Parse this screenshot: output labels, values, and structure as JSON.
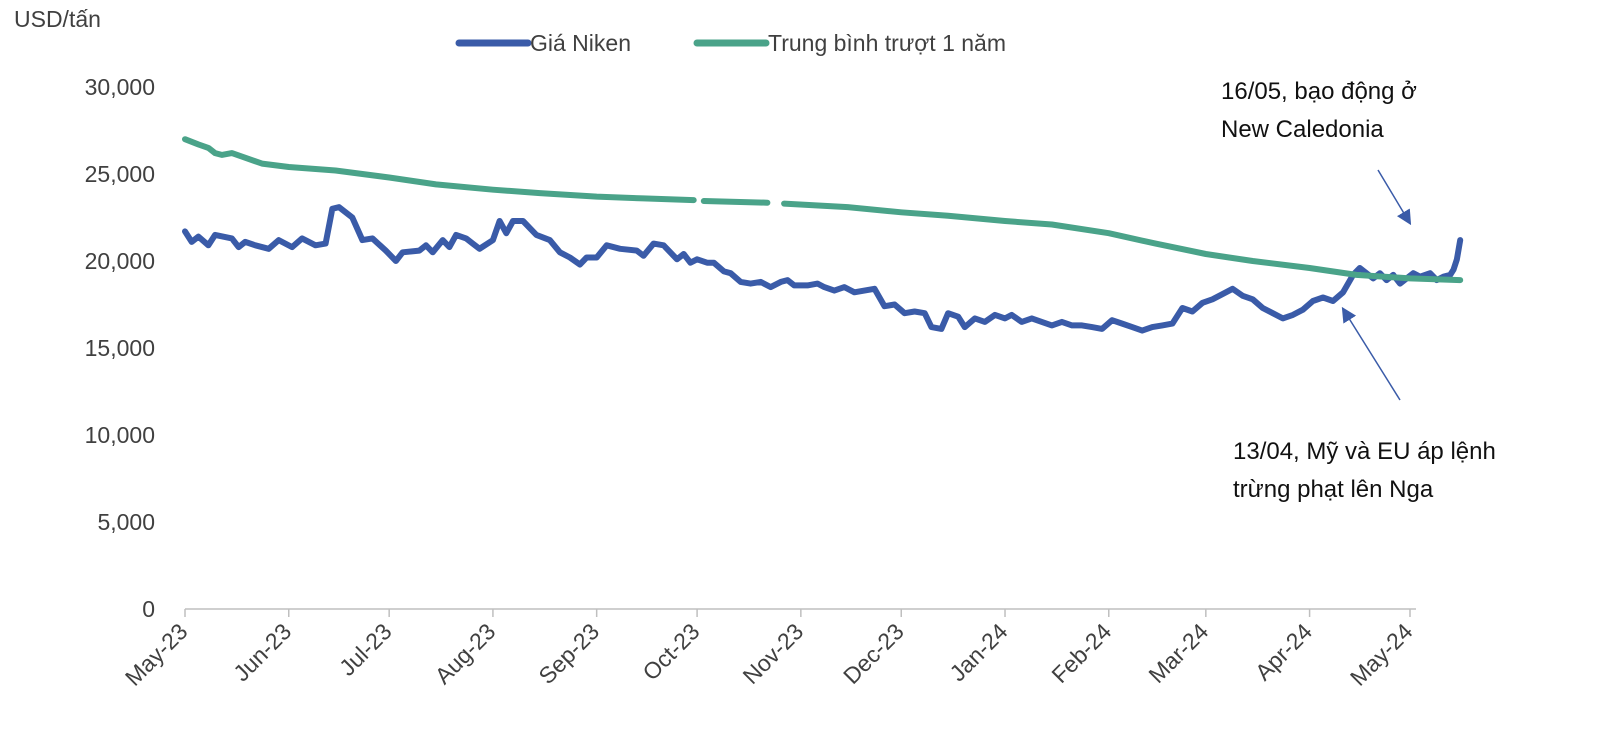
{
  "chart_data": {
    "type": "line",
    "ylabel": "USD/tấn",
    "ylim": [
      0,
      30000
    ],
    "yticks": [
      "0",
      "5,000",
      "10,000",
      "15,000",
      "20,000",
      "25,000",
      "30,000"
    ],
    "ytick_values": [
      0,
      5000,
      10000,
      15000,
      20000,
      25000,
      30000
    ],
    "x_ticks": [
      "May-23",
      "Jun-23",
      "Jul-23",
      "Aug-23",
      "Sep-23",
      "Oct-23",
      "Nov-23",
      "Dec-23",
      "Jan-24",
      "Feb-24",
      "Mar-24",
      "Apr-24",
      "May-24"
    ],
    "x_tick_dates": [
      "2023-05-01",
      "2023-06-01",
      "2023-07-01",
      "2023-08-01",
      "2023-09-01",
      "2023-10-01",
      "2023-11-01",
      "2023-12-01",
      "2024-01-01",
      "2024-02-01",
      "2024-03-01",
      "2024-04-01",
      "2024-05-01"
    ],
    "grid": false,
    "legend_position": "top-center",
    "series": [
      {
        "name": "Giá Niken",
        "color": "#3a5ba8",
        "points": [
          [
            "2023-05-01",
            21700
          ],
          [
            "2023-05-03",
            21100
          ],
          [
            "2023-05-05",
            21400
          ],
          [
            "2023-05-08",
            20900
          ],
          [
            "2023-05-10",
            21500
          ],
          [
            "2023-05-15",
            21300
          ],
          [
            "2023-05-17",
            20800
          ],
          [
            "2023-05-19",
            21100
          ],
          [
            "2023-05-22",
            20900
          ],
          [
            "2023-05-26",
            20700
          ],
          [
            "2023-05-29",
            21200
          ],
          [
            "2023-06-02",
            20800
          ],
          [
            "2023-06-05",
            21300
          ],
          [
            "2023-06-09",
            20900
          ],
          [
            "2023-06-12",
            21000
          ],
          [
            "2023-06-14",
            23000
          ],
          [
            "2023-06-16",
            23100
          ],
          [
            "2023-06-20",
            22500
          ],
          [
            "2023-06-23",
            21200
          ],
          [
            "2023-06-26",
            21300
          ],
          [
            "2023-06-30",
            20600
          ],
          [
            "2023-07-03",
            20000
          ],
          [
            "2023-07-05",
            20500
          ],
          [
            "2023-07-10",
            20600
          ],
          [
            "2023-07-12",
            20900
          ],
          [
            "2023-07-14",
            20500
          ],
          [
            "2023-07-17",
            21200
          ],
          [
            "2023-07-19",
            20800
          ],
          [
            "2023-07-21",
            21500
          ],
          [
            "2023-07-24",
            21300
          ],
          [
            "2023-07-26",
            21000
          ],
          [
            "2023-07-28",
            20700
          ],
          [
            "2023-08-01",
            21200
          ],
          [
            "2023-08-03",
            22300
          ],
          [
            "2023-08-05",
            21600
          ],
          [
            "2023-08-07",
            22300
          ],
          [
            "2023-08-10",
            22300
          ],
          [
            "2023-08-14",
            21500
          ],
          [
            "2023-08-18",
            21200
          ],
          [
            "2023-08-21",
            20500
          ],
          [
            "2023-08-24",
            20200
          ],
          [
            "2023-08-27",
            19800
          ],
          [
            "2023-08-29",
            20200
          ],
          [
            "2023-09-01",
            20200
          ],
          [
            "2023-09-04",
            20900
          ],
          [
            "2023-09-08",
            20700
          ],
          [
            "2023-09-13",
            20600
          ],
          [
            "2023-09-15",
            20300
          ],
          [
            "2023-09-18",
            21000
          ],
          [
            "2023-09-21",
            20900
          ],
          [
            "2023-09-25",
            20100
          ],
          [
            "2023-09-27",
            20400
          ],
          [
            "2023-09-29",
            19900
          ],
          [
            "2023-10-01",
            20100
          ],
          [
            "2023-10-04",
            19900
          ],
          [
            "2023-10-06",
            19900
          ],
          [
            "2023-10-09",
            19400
          ],
          [
            "2023-10-11",
            19300
          ],
          [
            "2023-10-14",
            18800
          ],
          [
            "2023-10-17",
            18700
          ],
          [
            "2023-10-20",
            18800
          ],
          [
            "2023-10-23",
            18500
          ],
          [
            "2023-10-26",
            18800
          ],
          [
            "2023-10-28",
            18900
          ],
          [
            "2023-10-30",
            18600
          ],
          [
            "2023-11-03",
            18600
          ],
          [
            "2023-11-06",
            18700
          ],
          [
            "2023-11-08",
            18500
          ],
          [
            "2023-11-11",
            18300
          ],
          [
            "2023-11-14",
            18500
          ],
          [
            "2023-11-17",
            18200
          ],
          [
            "2023-11-20",
            18300
          ],
          [
            "2023-11-23",
            18400
          ],
          [
            "2023-11-26",
            17400
          ],
          [
            "2023-11-29",
            17500
          ],
          [
            "2023-12-02",
            17000
          ],
          [
            "2023-12-05",
            17100
          ],
          [
            "2023-12-08",
            17000
          ],
          [
            "2023-12-10",
            16200
          ],
          [
            "2023-12-13",
            16100
          ],
          [
            "2023-12-15",
            17000
          ],
          [
            "2023-12-18",
            16800
          ],
          [
            "2023-12-20",
            16200
          ],
          [
            "2023-12-23",
            16700
          ],
          [
            "2023-12-26",
            16500
          ],
          [
            "2023-12-29",
            16900
          ],
          [
            "2024-01-01",
            16700
          ],
          [
            "2024-01-03",
            16900
          ],
          [
            "2024-01-06",
            16500
          ],
          [
            "2024-01-09",
            16700
          ],
          [
            "2024-01-12",
            16500
          ],
          [
            "2024-01-15",
            16300
          ],
          [
            "2024-01-18",
            16500
          ],
          [
            "2024-01-21",
            16300
          ],
          [
            "2024-01-24",
            16300
          ],
          [
            "2024-01-27",
            16200
          ],
          [
            "2024-01-30",
            16100
          ],
          [
            "2024-02-02",
            16600
          ],
          [
            "2024-02-05",
            16400
          ],
          [
            "2024-02-08",
            16200
          ],
          [
            "2024-02-11",
            16000
          ],
          [
            "2024-02-14",
            16200
          ],
          [
            "2024-02-17",
            16300
          ],
          [
            "2024-02-20",
            16400
          ],
          [
            "2024-02-23",
            17300
          ],
          [
            "2024-02-26",
            17100
          ],
          [
            "2024-02-29",
            17600
          ],
          [
            "2024-03-03",
            17800
          ],
          [
            "2024-03-06",
            18100
          ],
          [
            "2024-03-09",
            18400
          ],
          [
            "2024-03-12",
            18000
          ],
          [
            "2024-03-15",
            17800
          ],
          [
            "2024-03-18",
            17300
          ],
          [
            "2024-03-21",
            17000
          ],
          [
            "2024-03-24",
            16700
          ],
          [
            "2024-03-27",
            16900
          ],
          [
            "2024-03-30",
            17200
          ],
          [
            "2024-04-02",
            17700
          ],
          [
            "2024-04-05",
            17900
          ],
          [
            "2024-04-08",
            17700
          ],
          [
            "2024-04-11",
            18200
          ],
          [
            "2024-04-14",
            19200
          ],
          [
            "2024-04-16",
            19600
          ],
          [
            "2024-04-18",
            19300
          ],
          [
            "2024-04-20",
            19000
          ],
          [
            "2024-04-22",
            19300
          ],
          [
            "2024-04-24",
            18900
          ],
          [
            "2024-04-26",
            19200
          ],
          [
            "2024-04-28",
            18700
          ],
          [
            "2024-04-30",
            19000
          ],
          [
            "2024-05-02",
            19300
          ],
          [
            "2024-05-04",
            19100
          ],
          [
            "2024-05-07",
            19300
          ],
          [
            "2024-05-09",
            18900
          ],
          [
            "2024-05-11",
            19100
          ],
          [
            "2024-05-13",
            19200
          ],
          [
            "2024-05-14",
            19500
          ],
          [
            "2024-05-15",
            20100
          ],
          [
            "2024-05-16",
            21200
          ]
        ]
      },
      {
        "name": "Trung bình trượt 1 năm",
        "color": "#4aa389",
        "points": [
          [
            "2023-05-01",
            27000
          ],
          [
            "2023-05-05",
            26700
          ],
          [
            "2023-05-08",
            26500
          ],
          [
            "2023-05-10",
            26200
          ],
          [
            "2023-05-12",
            26100
          ],
          [
            "2023-05-15",
            26200
          ],
          [
            "2023-05-18",
            26000
          ],
          [
            "2023-05-24",
            25600
          ],
          [
            "2023-06-01",
            25400
          ],
          [
            "2023-06-15",
            25200
          ],
          [
            "2023-07-01",
            24800
          ],
          [
            "2023-07-15",
            24400
          ],
          [
            "2023-08-01",
            24100
          ],
          [
            "2023-08-15",
            23900
          ],
          [
            "2023-09-01",
            23700
          ],
          [
            "2023-09-15",
            23600
          ],
          [
            "2023-09-30",
            23500
          ],
          [
            "2023-10-01",
            null
          ],
          [
            "2023-10-03",
            23450
          ],
          [
            "2023-10-22",
            23350
          ],
          [
            "2023-10-23",
            null
          ],
          [
            "2023-10-27",
            23300
          ],
          [
            "2023-11-15",
            23100
          ],
          [
            "2023-12-01",
            22800
          ],
          [
            "2023-12-15",
            22600
          ],
          [
            "2024-01-01",
            22300
          ],
          [
            "2024-01-15",
            22100
          ],
          [
            "2024-02-01",
            21600
          ],
          [
            "2024-02-15",
            21000
          ],
          [
            "2024-03-01",
            20400
          ],
          [
            "2024-03-15",
            20000
          ],
          [
            "2024-04-01",
            19600
          ],
          [
            "2024-04-15",
            19200
          ],
          [
            "2024-05-01",
            19000
          ],
          [
            "2024-05-16",
            18900
          ]
        ]
      }
    ],
    "annotations": [
      {
        "text_lines": [
          "16/05, bạo động ở",
          "New Caledonia"
        ],
        "date": "2024-05-16",
        "value": 21200
      },
      {
        "text_lines": [
          "13/04, Mỹ và EU áp lệnh",
          "trừng phạt lên Nga"
        ],
        "date": "2024-04-13",
        "value": 18700
      }
    ]
  }
}
